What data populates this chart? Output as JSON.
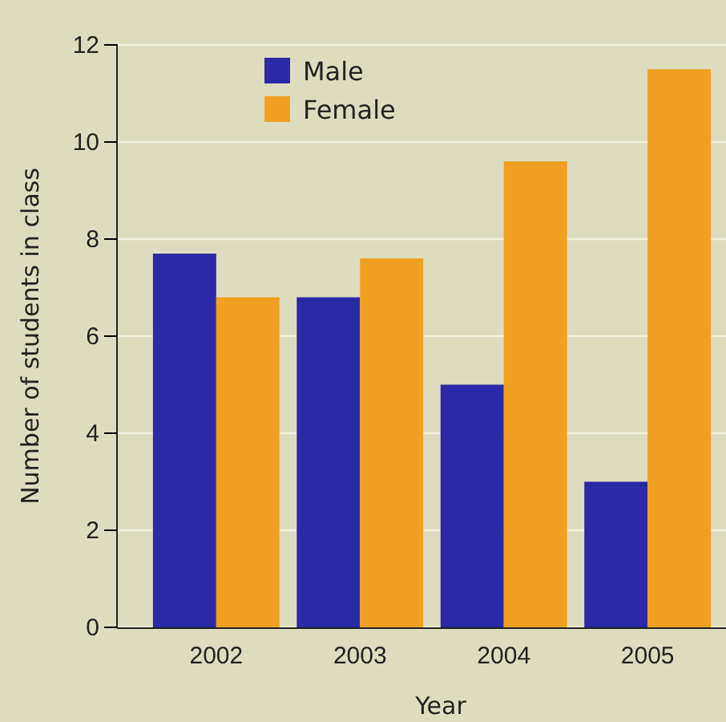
{
  "chart_data": {
    "type": "bar",
    "xlabel": "Year",
    "ylabel": "Number of students in class",
    "categories": [
      "2002",
      "2003",
      "2004",
      "2005"
    ],
    "series": [
      {
        "name": "Male",
        "color": "#2a2aa6",
        "values": [
          7.7,
          6.8,
          5,
          3
        ]
      },
      {
        "name": "Female",
        "color": "#f0a020",
        "values": [
          6.8,
          7.6,
          9.6,
          11.5
        ]
      }
    ],
    "ylim": [
      0,
      12
    ],
    "yticks": [
      0,
      2,
      4,
      6,
      8,
      10,
      12
    ],
    "grid": "y",
    "legend": "top left"
  }
}
